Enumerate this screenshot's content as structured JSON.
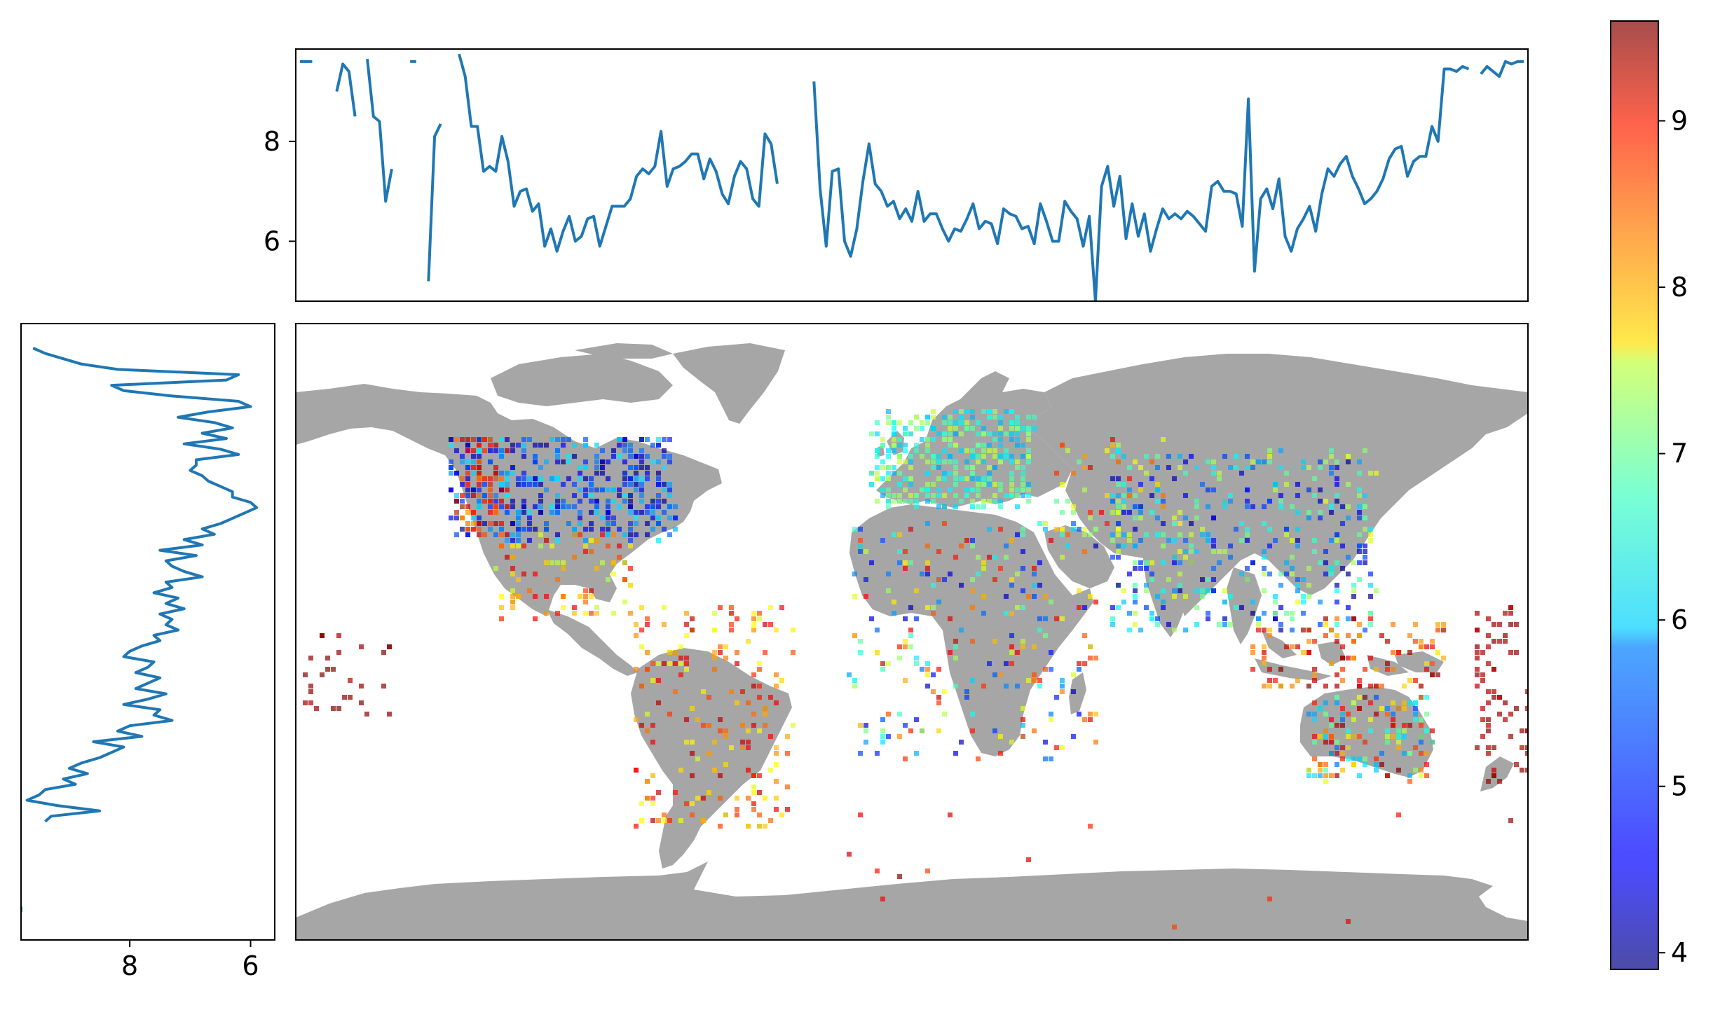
{
  "colors": {
    "line": "#1f77b4",
    "land": "#a6a6a6",
    "frame": "#000000"
  },
  "colormap": {
    "name": "jet",
    "alpha": 0.7,
    "vmin": 3.9,
    "vmax": 9.6,
    "ticks": [
      "4",
      "5",
      "6",
      "7",
      "8",
      "9"
    ],
    "tick_values": [
      4,
      5,
      6,
      7,
      8,
      9
    ]
  },
  "top_panel": {
    "y_ticks": [
      "6",
      "8"
    ],
    "y_tick_values": [
      6,
      8
    ],
    "ylim": [
      4.8,
      9.85
    ]
  },
  "left_panel": {
    "x_ticks": [
      "8",
      "6"
    ],
    "x_tick_values": [
      8,
      6
    ],
    "xlim": [
      9.8,
      5.6
    ]
  },
  "chart_data": {
    "type": "heatmap",
    "description_of_values": "gridded map of values on world map with marginal mean profiles",
    "top_profile": [
      9.6,
      9.6,
      9.6,
      null,
      null,
      null,
      9.0,
      9.55,
      9.4,
      8.5,
      null,
      9.65,
      8.5,
      8.4,
      6.8,
      7.45,
      null,
      null,
      9.6,
      9.6,
      null,
      5.2,
      8.1,
      8.35,
      null,
      null,
      9.75,
      9.3,
      8.3,
      8.3,
      7.4,
      7.5,
      7.4,
      8.1,
      7.6,
      6.7,
      7.0,
      7.05,
      6.6,
      6.75,
      5.9,
      6.25,
      5.8,
      6.2,
      6.5,
      6.0,
      6.1,
      6.45,
      6.5,
      5.9,
      6.3,
      6.7,
      6.7,
      6.7,
      6.85,
      7.3,
      7.45,
      7.35,
      7.5,
      8.2,
      7.1,
      7.45,
      7.5,
      7.6,
      7.75,
      7.75,
      7.25,
      7.65,
      7.4,
      6.95,
      6.75,
      7.3,
      7.6,
      7.45,
      6.85,
      6.7,
      8.15,
      7.95,
      7.15,
      null,
      null,
      null,
      null,
      null,
      9.2,
      7.05,
      5.9,
      7.4,
      7.45,
      6.0,
      5.7,
      6.25,
      7.2,
      7.95,
      7.15,
      7.0,
      6.7,
      6.8,
      6.45,
      6.65,
      6.4,
      7.0,
      6.4,
      6.55,
      6.55,
      6.25,
      6.0,
      6.25,
      6.2,
      6.45,
      6.75,
      6.25,
      6.4,
      6.35,
      5.95,
      6.65,
      6.55,
      6.5,
      6.25,
      6.3,
      5.95,
      6.75,
      6.4,
      6.0,
      6.0,
      6.8,
      6.6,
      6.45,
      5.9,
      6.5,
      4.8,
      7.1,
      7.5,
      6.7,
      7.3,
      6.05,
      6.75,
      6.1,
      6.55,
      5.8,
      6.25,
      6.65,
      6.45,
      6.55,
      6.45,
      6.6,
      6.5,
      6.35,
      6.2,
      7.1,
      7.2,
      7.0,
      7.0,
      6.95,
      6.3,
      8.85,
      5.4,
      6.85,
      7.05,
      6.65,
      7.25,
      6.1,
      5.8,
      6.25,
      6.45,
      6.7,
      6.2,
      6.95,
      7.45,
      7.3,
      7.55,
      7.7,
      7.3,
      7.05,
      6.75,
      6.85,
      7.0,
      7.25,
      7.65,
      7.85,
      7.9,
      7.3,
      7.6,
      7.7,
      7.7,
      8.3,
      8.0,
      9.45,
      9.45,
      9.4,
      9.5,
      9.45,
      null,
      9.35,
      9.5,
      9.4,
      9.3,
      9.6,
      9.55,
      9.6,
      9.6
    ],
    "left_profile": [
      9.6,
      9.4,
      9.1,
      8.8,
      8.2,
      6.2,
      6.4,
      8.3,
      8.1,
      7.3,
      6.2,
      6.0,
      6.7,
      7.2,
      6.6,
      6.3,
      6.8,
      6.4,
      7.1,
      6.5,
      6.2,
      6.9,
      6.9,
      7.0,
      6.8,
      6.7,
      6.5,
      6.3,
      6.3,
      6.0,
      5.9,
      6.1,
      6.3,
      6.5,
      6.8,
      6.6,
      7.1,
      6.8,
      7.5,
      6.9,
      7.4,
      7.3,
      7.1,
      6.8,
      7.4,
      7.3,
      7.6,
      7.2,
      7.4,
      7.1,
      7.5,
      7.3,
      7.4,
      7.2,
      7.6,
      7.5,
      7.8,
      8.0,
      8.1,
      7.6,
      7.7,
      7.9,
      7.5,
      7.7,
      7.9,
      7.4,
      7.7,
      8.1,
      7.5,
      7.6,
      7.3,
      8.0,
      8.2,
      7.8,
      8.6,
      8.1,
      8.3,
      8.5,
      8.8,
      9.0,
      8.7,
      9.1,
      8.9,
      9.4,
      9.5,
      9.7,
      9.2,
      8.5,
      9.3,
      9.4,
      null,
      null,
      null,
      null,
      null,
      null,
      null,
      null,
      null,
      null,
      null,
      null,
      null,
      null,
      null,
      9.8,
      9.8
    ]
  }
}
